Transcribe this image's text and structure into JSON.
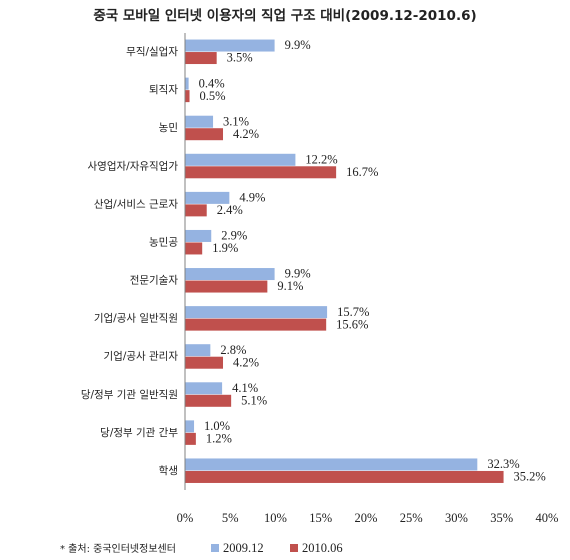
{
  "chart_data": {
    "type": "bar",
    "orientation": "horizontal",
    "title": "중국 모바일 인터넷 이용자의 직업 구조 대비(2009.12-2010.6)",
    "categories": [
      "무직/실업자",
      "퇴직자",
      "농민",
      "사영업자/자유직업가",
      "산업/서비스 근로자",
      "농민공",
      "전문기술자",
      "기업/공사 일반직원",
      "기업/공사 관리자",
      "당/정부 기관 일반직원",
      "당/정부 기관 간부",
      "학생"
    ],
    "series": [
      {
        "name": "2009.12",
        "color": "#95b3e1",
        "values": [
          9.9,
          0.4,
          3.1,
          12.2,
          4.9,
          2.9,
          9.9,
          15.7,
          2.8,
          4.1,
          1.0,
          32.3
        ],
        "labels": [
          "9.9%",
          "0.4%",
          "3.1%",
          "12.2%",
          "4.9%",
          "2.9%",
          "9.9%",
          "15.7%",
          "2.8%",
          "4.1%",
          "1.0%",
          "32.3%"
        ]
      },
      {
        "name": "2010.06",
        "color": "#c0504d",
        "values": [
          3.5,
          0.5,
          4.2,
          16.7,
          2.4,
          1.9,
          9.1,
          15.6,
          4.2,
          5.1,
          1.2,
          35.2
        ],
        "labels": [
          "3.5%",
          "0.5%",
          "4.2%",
          "16.7%",
          "2.4%",
          "1.9%",
          "9.1%",
          "15.6%",
          "4.2%",
          "5.1%",
          "1.2%",
          "35.2%"
        ]
      }
    ],
    "xlim": [
      0,
      40
    ],
    "xticks": [
      "0%",
      "5%",
      "10%",
      "15%",
      "20%",
      "25%",
      "30%",
      "35%",
      "40%"
    ],
    "grid": false,
    "legend": "bottom"
  },
  "source_note": "* 출처: 중국인터넷정보센터"
}
